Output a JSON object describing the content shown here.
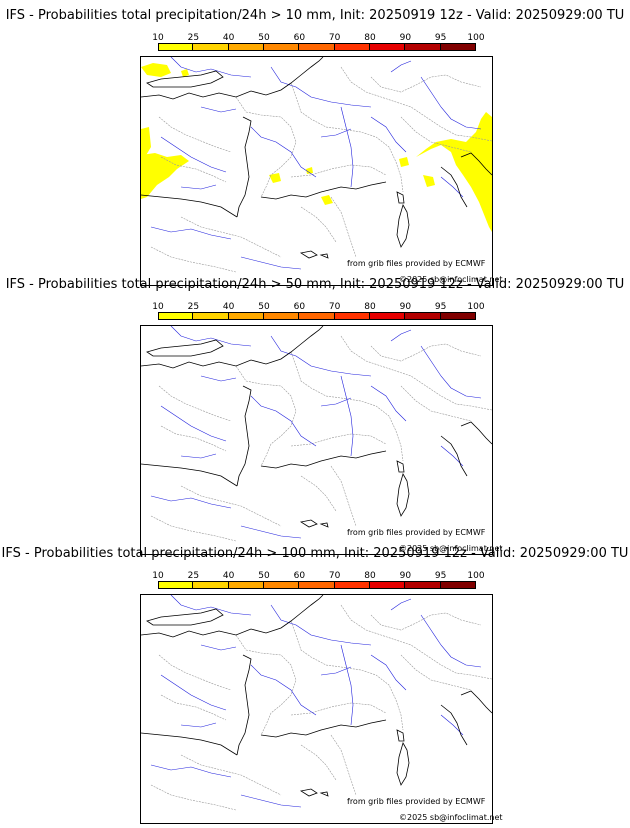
{
  "colorbar": {
    "ticks": [
      "10",
      "25",
      "40",
      "50",
      "60",
      "70",
      "80",
      "90",
      "95",
      "100"
    ],
    "colors": [
      "#ffff00",
      "#ffd400",
      "#ffaa00",
      "#ff8800",
      "#ff6600",
      "#ff3300",
      "#e60000",
      "#b30000",
      "#800000"
    ]
  },
  "panels": [
    {
      "title": "IFS - Probabilities total precipitation/24h > 10 mm, Init: 20250919 12z - Valid: 20250929:00 TU",
      "source": "from grib files provided by ECMWF",
      "copyright": "©2025 sb@infoclimat.net",
      "precip_color": "#ffff00"
    },
    {
      "title": "IFS - Probabilities total precipitation/24h > 50 mm, Init: 20250919 12z - Valid: 20250929:00 TU",
      "source": "from grib files provided by ECMWF",
      "copyright": "©2025 sb@infoclimat.net",
      "precip_color": ""
    },
    {
      "title": "IFS - Probabilities total precipitation/24h > 100 mm, Init: 20250919 12z - Valid: 20250929:00 TU",
      "source": "from grib files provided by ECMWF",
      "copyright": "©2025 sb@infoclimat.net",
      "precip_color": ""
    }
  ],
  "map_colors": {
    "coast": "#000000",
    "borders": "#999999",
    "rivers": "#2222dd"
  }
}
